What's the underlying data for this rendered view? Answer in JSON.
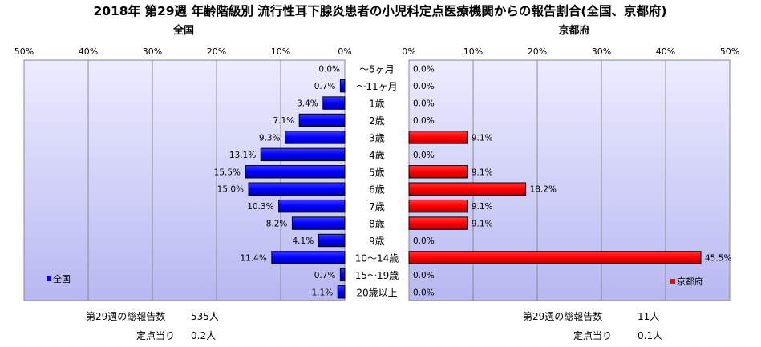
{
  "chart_data": {
    "type": "bar",
    "title": "2018年 第29週 年齢階級別 流行性耳下腺炎患者の小児科定点医療機関からの報告割合(全国、京都府)",
    "categories": [
      "～5ヶ月",
      "～11ヶ月",
      "1歳",
      "2歳",
      "3歳",
      "4歳",
      "5歳",
      "6歳",
      "7歳",
      "8歳",
      "9歳",
      "10～14歳",
      "15～19歳",
      "20歳以上"
    ],
    "xlim": [
      0,
      50
    ],
    "x_ticks": [
      "50%",
      "40%",
      "30%",
      "20%",
      "10%",
      "0%"
    ],
    "x_ticks_right": [
      "0%",
      "10%",
      "20%",
      "30%",
      "40%",
      "50%"
    ],
    "panels": [
      {
        "name": "全国",
        "legend": "全国",
        "color": "#0000ff",
        "values": [
          0.0,
          0.7,
          3.4,
          7.1,
          9.3,
          13.1,
          15.5,
          15.0,
          10.3,
          8.2,
          4.1,
          11.4,
          0.7,
          1.1
        ],
        "labels": [
          "0.0%",
          "0.7%",
          "3.4%",
          "7.1%",
          "9.3%",
          "13.1%",
          "15.5%",
          "15.0%",
          "10.3%",
          "8.2%",
          "4.1%",
          "11.4%",
          "0.7%",
          "1.1%"
        ],
        "total_label": "第29週の総報告数",
        "total_value": "535人",
        "per_label": "定点当り",
        "per_value": "0.2人"
      },
      {
        "name": "京都府",
        "legend": "京都府",
        "color": "#ff0000",
        "values": [
          0.0,
          0.0,
          0.0,
          0.0,
          9.1,
          0.0,
          9.1,
          18.2,
          9.1,
          9.1,
          0.0,
          45.5,
          0.0,
          0.0
        ],
        "labels": [
          "0.0%",
          "0.0%",
          "0.0%",
          "0.0%",
          "9.1%",
          "0.0%",
          "9.1%",
          "18.2%",
          "9.1%",
          "9.1%",
          "0.0%",
          "45.5%",
          "0.0%",
          "0.0%"
        ],
        "total_label": "第29週の総報告数",
        "total_value": "11人",
        "per_label": "定点当り",
        "per_value": "0.1人"
      }
    ]
  }
}
